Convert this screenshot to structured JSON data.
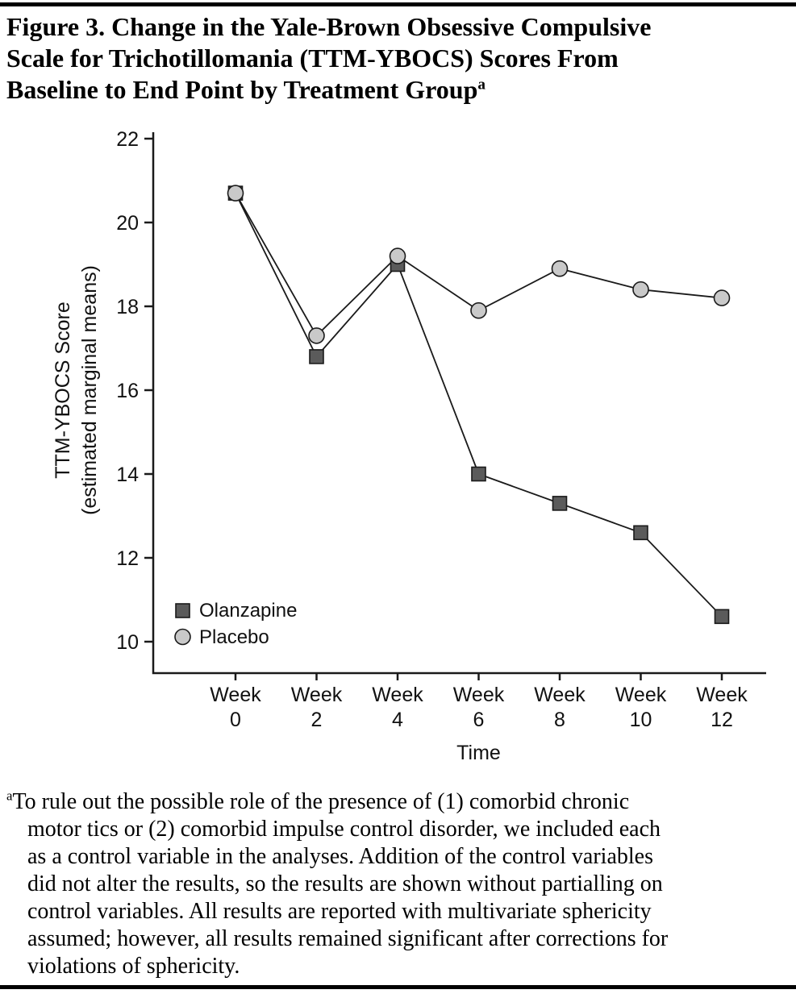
{
  "figure": {
    "title": "Figure 3. Change in the Yale-Brown Obsessive Compulsive Scale for Trichotillomania (TTM-YBOCS) Scores From Baseline to End Point by Treatment Group",
    "title_lines": [
      "Figure 3. Change in the Yale-Brown Obsessive Compulsive",
      "Scale for Trichotillomania (TTM-YBOCS) Scores From",
      "Baseline to End Point by Treatment Group"
    ],
    "title_superscript": "a"
  },
  "footnote": {
    "marker": "a",
    "text": "To rule out the possible role of the presence of (1) comorbid chronic motor tics or (2) comorbid impulse control disorder, we included each as a control variable in the analyses. Addition of the control variables did not alter the results, so the results are shown without partialling on control variables. All results are reported with multivariate sphericity assumed; however, all results remained significant after corrections for violations of sphericity.",
    "lines": [
      "To rule out the possible role of the presence of (1) comorbid chronic",
      "motor tics or (2) comorbid impulse control disorder, we included each",
      "as a control variable in the analyses. Addition of the control variables",
      "did not alter the results, so the results are shown without partialling on",
      "control variables. All results are reported with multivariate sphericity",
      "assumed; however, all results remained significant after corrections for",
      "violations of sphericity."
    ]
  },
  "chart_data": {
    "type": "line",
    "categories": [
      "Week 0",
      "Week 2",
      "Week 4",
      "Week 6",
      "Week 8",
      "Week 10",
      "Week 12"
    ],
    "series": [
      {
        "name": "Olanzapine",
        "marker": "square",
        "color": "#5b5b5b",
        "values": [
          20.7,
          16.8,
          19.0,
          14.0,
          13.3,
          12.6,
          10.6
        ]
      },
      {
        "name": "Placebo",
        "marker": "circle",
        "color": "#c9c9c9",
        "values": [
          20.7,
          17.3,
          19.2,
          17.9,
          18.9,
          18.4,
          18.2
        ]
      }
    ],
    "xlabel": "Time",
    "ylabel": "TTM-YBOCS Score",
    "ylabel_line2": "(estimated marginal means)",
    "ylim": [
      10,
      22
    ],
    "yticks": [
      10,
      12,
      14,
      16,
      18,
      20,
      22
    ],
    "grid": false,
    "legend_position": "lower-left",
    "line_color": "#1a1a1a"
  }
}
